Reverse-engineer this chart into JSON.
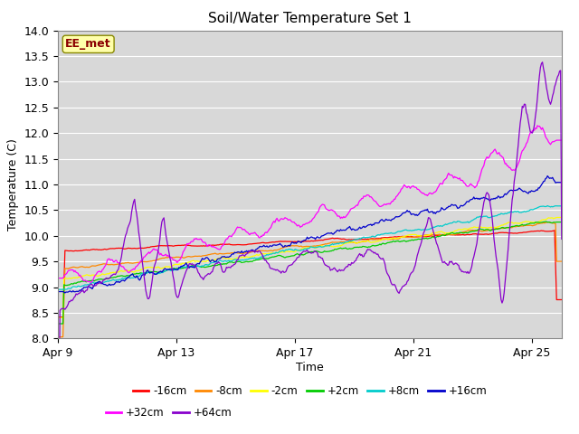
{
  "title": "Soil/Water Temperature Set 1",
  "xlabel": "Time",
  "ylabel": "Temperature (C)",
  "ylim": [
    8.0,
    14.0
  ],
  "yticks": [
    8.0,
    8.5,
    9.0,
    9.5,
    10.0,
    10.5,
    11.0,
    11.5,
    12.0,
    12.5,
    13.0,
    13.5,
    14.0
  ],
  "xlim_days": [
    0,
    17
  ],
  "x_tick_positions": [
    0,
    4,
    8,
    12,
    16
  ],
  "x_tick_labels": [
    "Apr 9",
    "Apr 13",
    "Apr 17",
    "Apr 21",
    "Apr 25"
  ],
  "series": [
    {
      "label": "-16cm",
      "color": "#ff0000"
    },
    {
      "label": "-8cm",
      "color": "#ff8800"
    },
    {
      "label": "-2cm",
      "color": "#ffff00"
    },
    {
      "label": "+2cm",
      "color": "#00cc00"
    },
    {
      "label": "+8cm",
      "color": "#00cccc"
    },
    {
      "label": "+16cm",
      "color": "#0000cc"
    },
    {
      "label": "+32cm",
      "color": "#ff00ff"
    },
    {
      "label": "+64cm",
      "color": "#8800cc"
    }
  ],
  "annotation_text": "EE_met",
  "annotation_color": "#8b0000",
  "plot_bg_color": "#d8d8d8",
  "n_points": 500
}
